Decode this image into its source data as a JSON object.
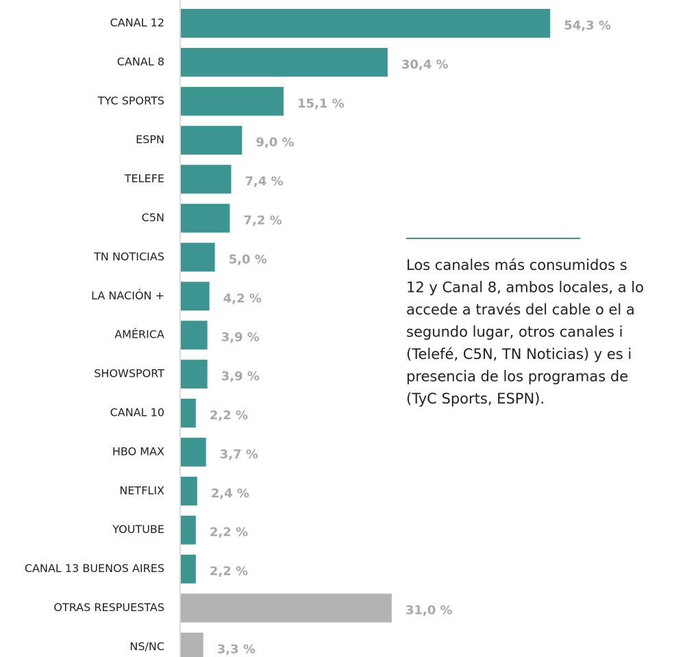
{
  "chart_data": {
    "type": "hbar",
    "categories": [
      "CANAL 12",
      "CANAL 8",
      "TYC SPORTS",
      "ESPN",
      "TELEFE",
      "C5N",
      "TN NOTICIAS",
      "LA NACIÓN +",
      "AMÉRICA",
      "SHOWSPORT",
      "CANAL 10",
      "HBO MAX",
      "NETFLIX",
      "YOUTUBE",
      "CANAL 13 BUENOS AIRES",
      "OTRAS RESPUESTAS",
      "NS/NC"
    ],
    "values": [
      54.3,
      30.4,
      15.1,
      9.0,
      7.4,
      7.2,
      5.0,
      4.2,
      3.9,
      3.9,
      2.2,
      3.7,
      2.4,
      2.2,
      2.2,
      31.0,
      3.3
    ],
    "value_labels": [
      "54,3 %",
      "30,4 %",
      "15,1 %",
      "9,0 %",
      "7,4 %",
      "7,2 %",
      "5,0 %",
      "4,2 %",
      "3,9 %",
      "3,9 %",
      "2,2 %",
      "3,7 %",
      "2,4 %",
      "2,2 %",
      "2,2 %",
      "31,0 %",
      "3,3 %"
    ],
    "colors": [
      "#3d9591",
      "#3d9591",
      "#3d9591",
      "#3d9591",
      "#3d9591",
      "#3d9591",
      "#3d9591",
      "#3d9591",
      "#3d9591",
      "#3d9591",
      "#3d9591",
      "#3d9591",
      "#3d9591",
      "#3d9591",
      "#3d9591",
      "#b3b3b3",
      "#b3b3b3"
    ],
    "annotation": [
      "Los canales más consumidos s",
      "12 y Canal 8, ambos locales, a lo",
      "accede a través del cable o el a",
      "segundo  lugar, otros canales i",
      "(Telefé, C5N, TN Noticias) y es i",
      "presencia de  los programas de",
      "(TyC Sports, ESPN)."
    ]
  }
}
